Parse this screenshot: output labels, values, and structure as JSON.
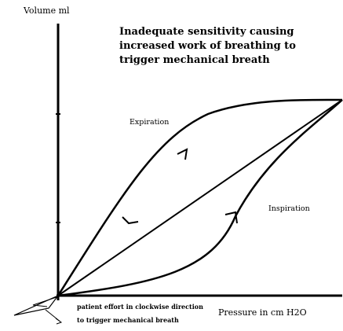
{
  "title": {
    "lines": [
      "Inadequate sensitivity causing",
      "increased work of breathing to",
      "trigger mechanical breath"
    ]
  },
  "axes": {
    "y_label": "Volume ml",
    "x_label": "Pressure in cm H2O"
  },
  "curves": {
    "expiration_label": "Expiration",
    "inspiration_label": "Inspiration"
  },
  "annotation": {
    "lines": [
      "patient effort in clockwise direction",
      "to trigger mechanical breath"
    ]
  },
  "colors": {
    "ink": "#000000",
    "background": "#ffffff"
  }
}
